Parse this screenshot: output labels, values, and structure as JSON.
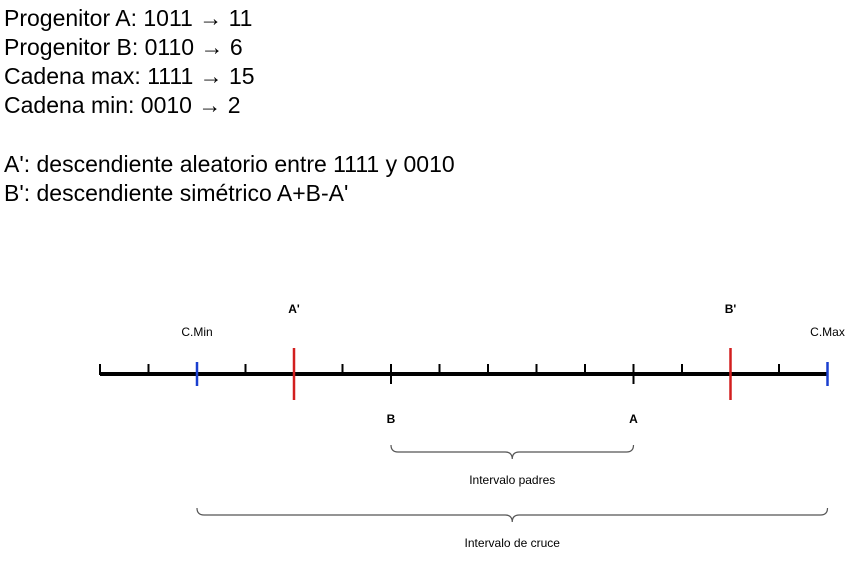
{
  "lines": {
    "progenitor_a": "Progenitor A: 1011 → 11",
    "progenitor_b": "Progenitor B: 0110 → 6",
    "cadena_max": "Cadena max: 1111 → 15",
    "cadena_min": "Cadena min: 0010 → 2",
    "a_prime": "A': descendiente aleatorio entre 1111 y 0010",
    "b_prime": "B': descendiente simétrico A+B-A'"
  },
  "diagram": {
    "number_line": {
      "min": 0,
      "max": 15
    },
    "markers": [
      {
        "key": "cmin",
        "value": 2,
        "label": "C.Min",
        "color": "#1a3fcf",
        "kind": "bound"
      },
      {
        "key": "aprime",
        "value": 4,
        "label": "A'",
        "color": "#d21f1f",
        "kind": "offspring"
      },
      {
        "key": "b",
        "value": 6,
        "label": "B",
        "color": "#000000",
        "kind": "parent"
      },
      {
        "key": "a",
        "value": 11,
        "label": "A",
        "color": "#000000",
        "kind": "parent"
      },
      {
        "key": "bprime",
        "value": 13,
        "label": "B'",
        "color": "#d21f1f",
        "kind": "offspring"
      },
      {
        "key": "cmax",
        "value": 15,
        "label": "C.Max",
        "color": "#1a3fcf",
        "kind": "bound"
      }
    ],
    "brace_parents": {
      "label": "Intervalo padres",
      "from": 6,
      "to": 11
    },
    "brace_cross": {
      "label": "Intervalo de cruce",
      "from": 2,
      "to": 15
    }
  }
}
